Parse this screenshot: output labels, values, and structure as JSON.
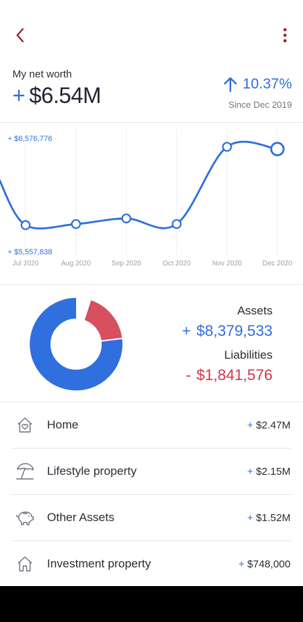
{
  "header": {
    "back_icon": "chevron-left-icon",
    "more_icon": "vertical-ellipsis-icon",
    "accent_color": "#a0202c"
  },
  "net_worth": {
    "label": "My net worth",
    "sign": "+",
    "value": "$6.54M",
    "change": "10.37%",
    "since": "Since Dec 2019",
    "accent_color": "#2f6fde"
  },
  "chart_data": {
    "type": "line",
    "x": [
      "Jul 2020",
      "Aug 2020",
      "Sep 2020",
      "Oct 2020",
      "Nov 2020",
      "Dec 2020"
    ],
    "series": [
      {
        "values": [
          5800000,
          5810000,
          5860000,
          5810000,
          6500000,
          6480000
        ]
      }
    ],
    "ylim": [
      5557838,
      6576776
    ],
    "y_max_label": "+ $6,576,776",
    "y_min_label": "+ $5,557,838",
    "line_color": "#2f6fde"
  },
  "summary": {
    "assets_label": "Assets",
    "assets_sign": "+",
    "assets_value": "$8,379,533",
    "liabilities_label": "Liabilities",
    "liabilities_sign": "-",
    "liabilities_value": "$1,841,576",
    "assets_color": "#2f6fde",
    "liabilities_color": "#d6505f"
  },
  "categories": [
    {
      "name": "Home",
      "amount": "$2.47M",
      "icon": "house-heart-icon"
    },
    {
      "name": "Lifestyle property",
      "amount": "$2.15M",
      "icon": "beach-umbrella-icon"
    },
    {
      "name": "Other Assets",
      "amount": "$1.52M",
      "icon": "piggy-bank-icon"
    },
    {
      "name": "Investment property",
      "amount": "$748,000",
      "icon": "house-icon"
    }
  ]
}
